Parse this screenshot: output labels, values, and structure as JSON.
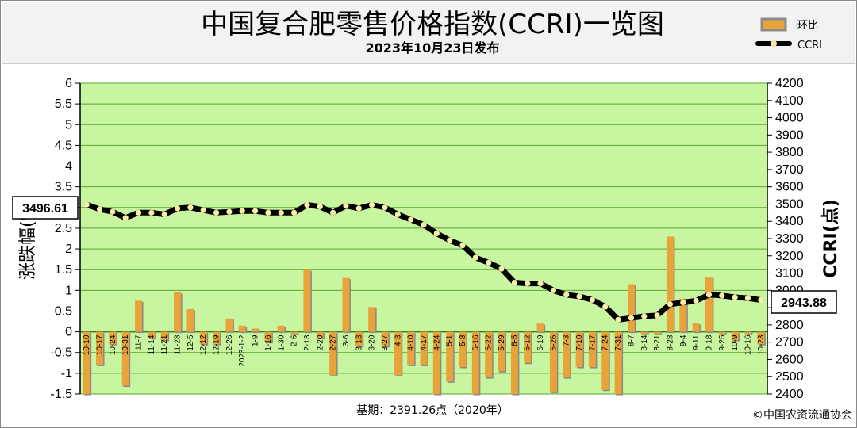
{
  "title": "中国复合肥零售价格指数(CCRI)一览图",
  "subtitle": "2023年10月23日发布",
  "legend": [
    {
      "label": "环比",
      "color": "#e8a33a"
    },
    {
      "label": "CCRI",
      "color": "#000000"
    }
  ],
  "base_note": "基期：2391.26点（2020年）",
  "copyright": "©中国农资流通协会",
  "start_callout": "3496.61",
  "end_callout": "2943.88",
  "chart_data": {
    "type": "bar+line",
    "categories": [
      "10-10",
      "10-17",
      "10-24",
      "10-31",
      "11-7",
      "11-14",
      "11-21",
      "11-28",
      "12-5",
      "12-12",
      "12-19",
      "12-26",
      "2023-1-2",
      "1-9",
      "1-16",
      "1-30",
      "2-6",
      "2-13",
      "2-20",
      "2-27",
      "3-6",
      "3-13",
      "3-20",
      "3-27",
      "4-3",
      "4-10",
      "4-17",
      "4-24",
      "5-1",
      "5-8",
      "5-16",
      "5-22",
      "5-29",
      "6-5",
      "6-12",
      "6-19",
      "6-26",
      "7-3",
      "7-10",
      "7-17",
      "7-24",
      "7-31",
      "8-7",
      "8-14",
      "8-21",
      "8-28",
      "9-4",
      "9-11",
      "9-18",
      "9-25",
      "10-9",
      "10-16",
      "10-23"
    ],
    "yleft": {
      "label": "涨跌幅(%)",
      "lim": [
        -1.5,
        6
      ],
      "ticks": [
        -1.5,
        -1,
        -0.5,
        0,
        0.5,
        1,
        1.5,
        2,
        2.5,
        3,
        3.5,
        4,
        4.5,
        5,
        5.5,
        6
      ]
    },
    "yright": {
      "label": "CCRI(点)",
      "lim": [
        2400,
        4200
      ],
      "ticks": [
        2400,
        2500,
        2600,
        2700,
        2800,
        2900,
        3000,
        3100,
        3200,
        3300,
        3400,
        3500,
        3600,
        3700,
        3800,
        3900,
        4000,
        4100,
        4200
      ]
    },
    "grid": true,
    "legend_position": "top-right",
    "series": [
      {
        "name": "环比",
        "axis": "left",
        "type": "bar",
        "color": "#e8a33a",
        "values": [
          -1.5,
          -0.8,
          -0.3,
          -1.3,
          0.75,
          -0.15,
          -0.2,
          0.95,
          0.55,
          -0.3,
          -0.3,
          0.32,
          0.15,
          0.08,
          -0.25,
          0.15,
          -0.05,
          1.5,
          -0.15,
          -1.05,
          1.3,
          -0.35,
          0.6,
          -0.35,
          -1.05,
          -0.8,
          -0.8,
          -1.5,
          -1.2,
          -0.85,
          -1.5,
          -1.1,
          -0.95,
          -1.5,
          -0.75,
          0.2,
          -1.45,
          -1.1,
          -0.85,
          -0.85,
          -1.4,
          -1.5,
          1.15,
          -0.05,
          -0.05,
          2.3,
          0.8,
          0.2,
          1.32,
          -0.05,
          -0.2,
          -0.05,
          -0.3
        ]
      },
      {
        "name": "CCRI",
        "axis": "right",
        "type": "line",
        "color": "#000000",
        "values": [
          3497,
          3470,
          3455,
          3420,
          3450,
          3450,
          3440,
          3475,
          3480,
          3465,
          3450,
          3455,
          3460,
          3460,
          3450,
          3450,
          3450,
          3495,
          3485,
          3450,
          3490,
          3475,
          3495,
          3480,
          3440,
          3410,
          3380,
          3330,
          3290,
          3260,
          3190,
          3160,
          3125,
          3045,
          3040,
          3040,
          3000,
          2975,
          2965,
          2945,
          2905,
          2830,
          2840,
          2850,
          2855,
          2920,
          2930,
          2940,
          2975,
          2970,
          2960,
          2955,
          2944
        ]
      }
    ]
  }
}
